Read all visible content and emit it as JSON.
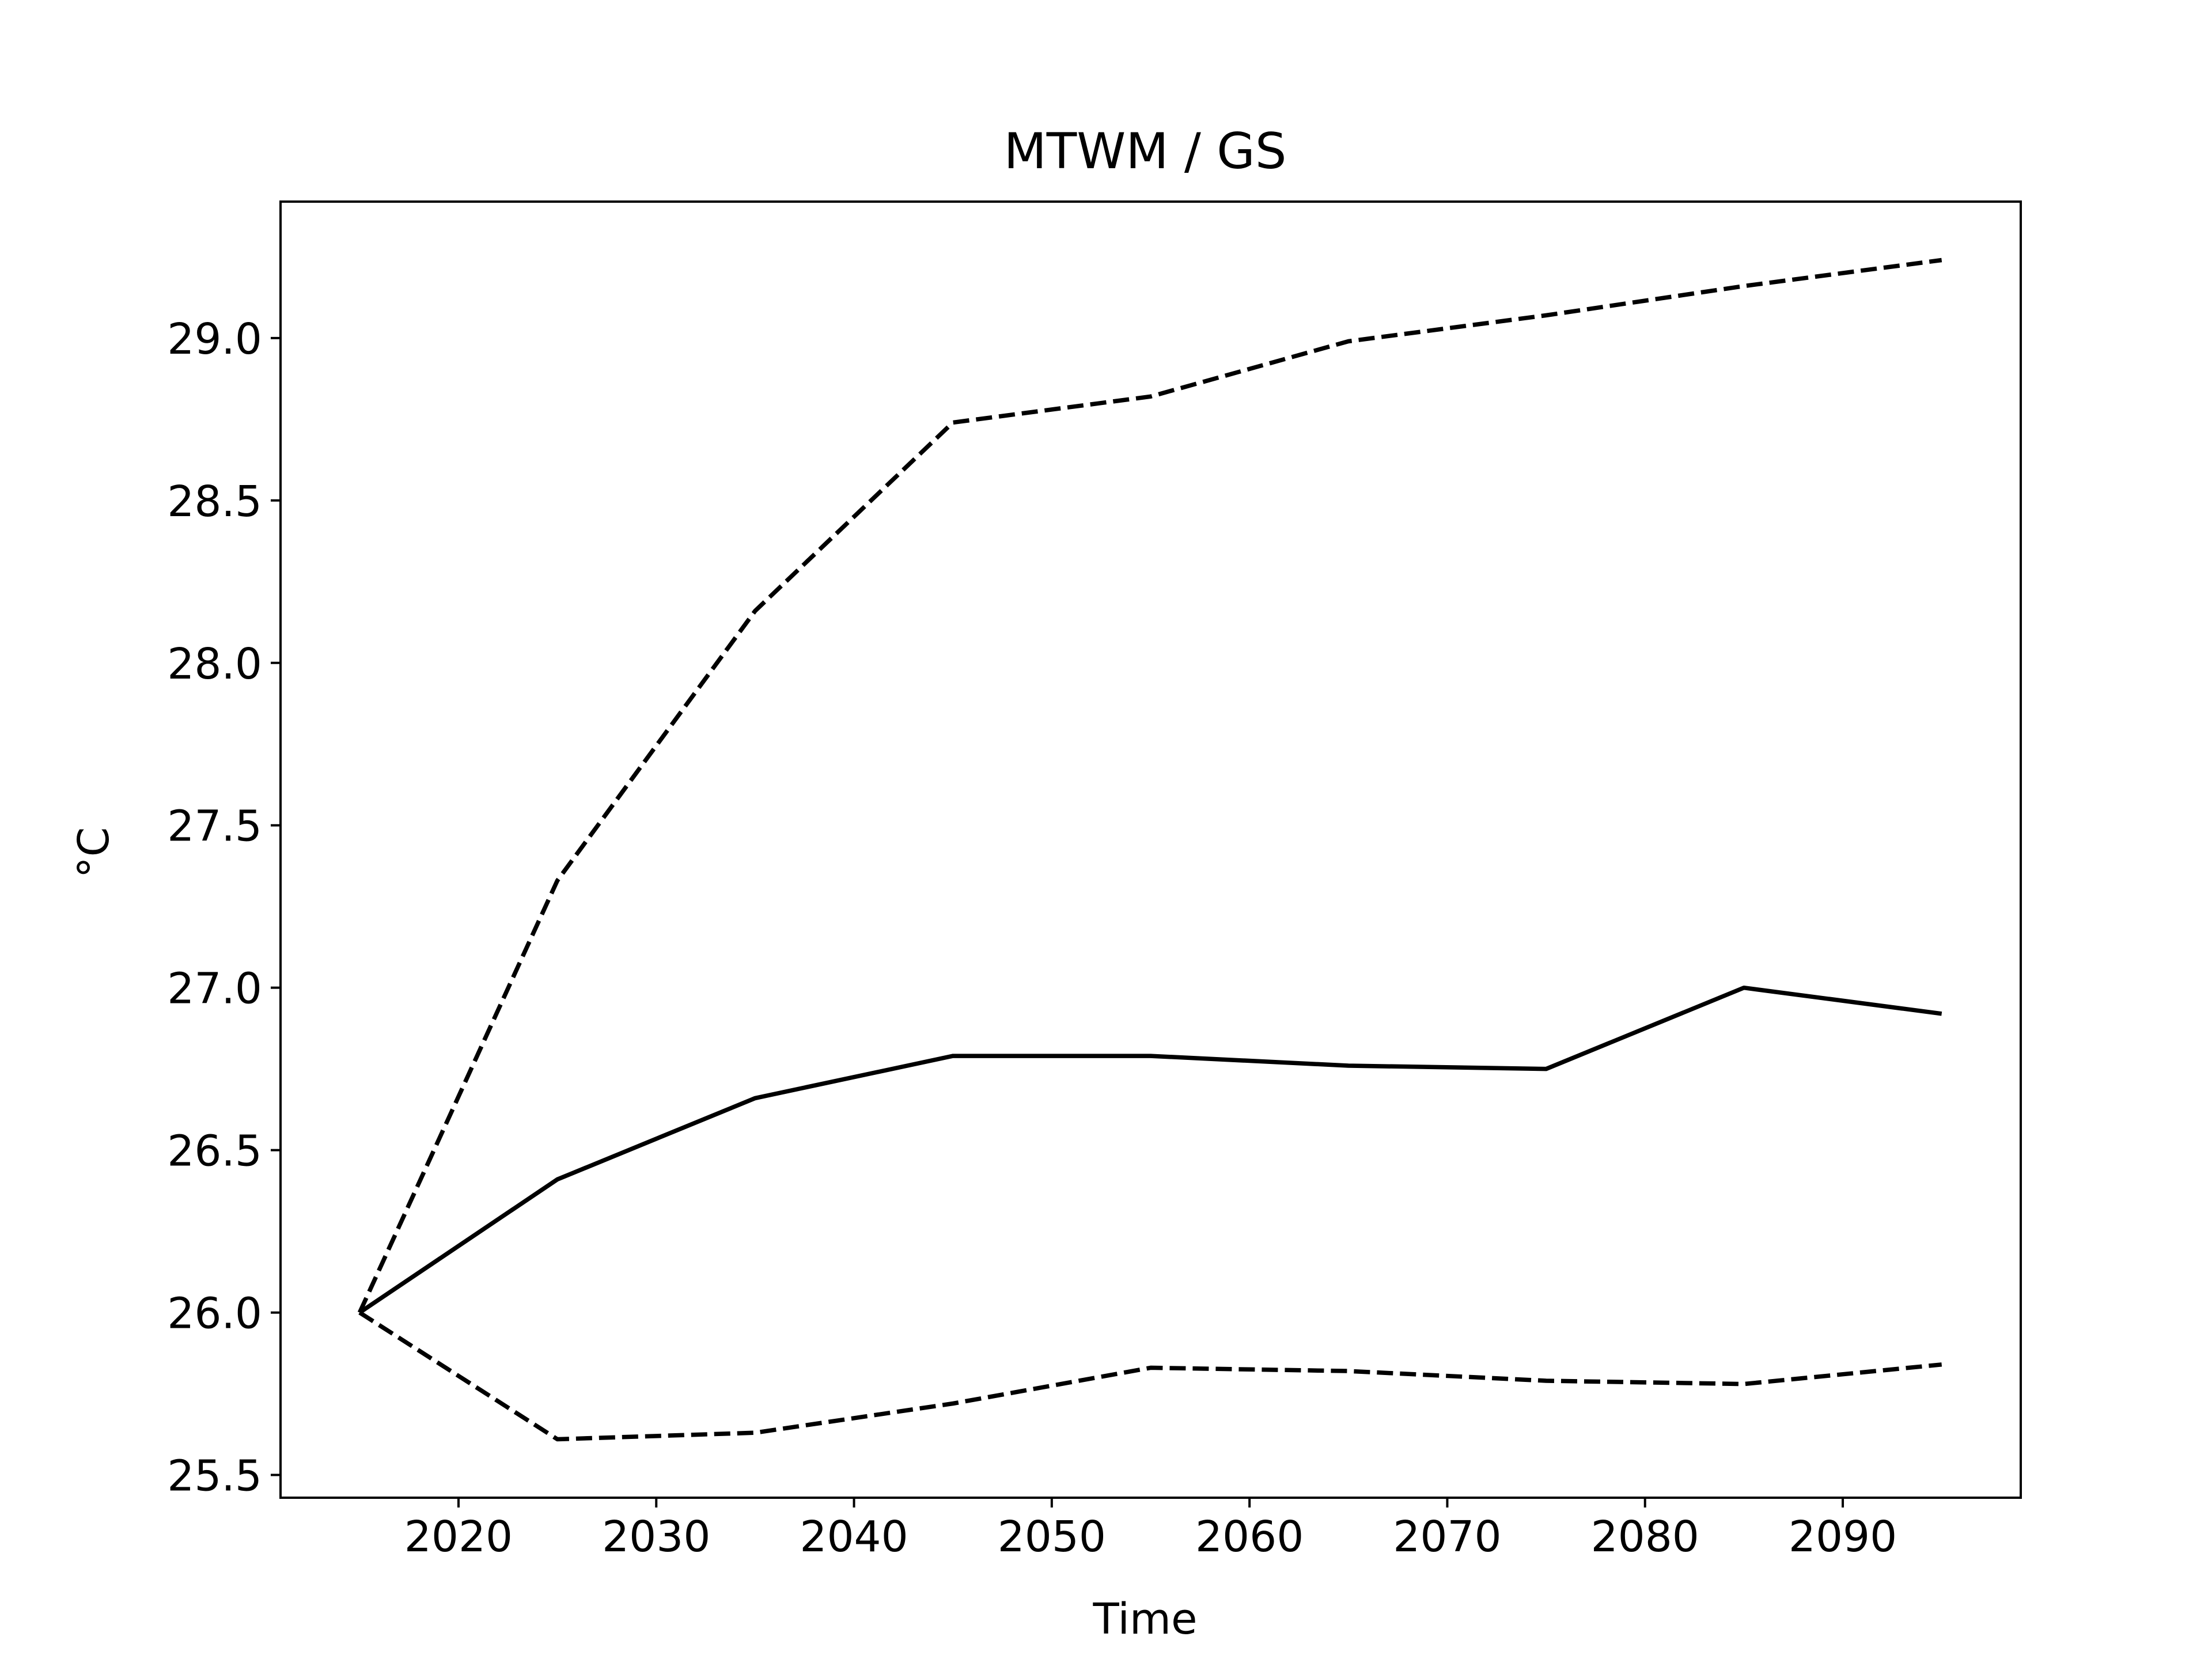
{
  "chart_data": {
    "type": "line",
    "title": "MTWM / GS",
    "xlabel": "Time",
    "ylabel": "°C",
    "xlim": [
      2011,
      2099
    ],
    "ylim": [
      25.43,
      29.42
    ],
    "xticks": [
      2020,
      2030,
      2040,
      2050,
      2060,
      2070,
      2080,
      2090
    ],
    "yticks": [
      25.5,
      26.0,
      26.5,
      27.0,
      27.5,
      28.0,
      28.5,
      29.0
    ],
    "ytick_format": 1,
    "grid": false,
    "legend": "none",
    "x": [
      2015,
      2025,
      2035,
      2045,
      2055,
      2065,
      2075,
      2085,
      2095
    ],
    "series": [
      {
        "style": "solid",
        "color": "#000000",
        "values": [
          26.0,
          26.41,
          26.66,
          26.79,
          26.79,
          26.76,
          26.75,
          27.0,
          26.92
        ]
      },
      {
        "style": "dashed",
        "color": "#000000",
        "values": [
          26.0,
          27.33,
          28.16,
          28.74,
          28.82,
          28.99,
          29.07,
          29.16,
          29.24
        ]
      },
      {
        "style": "dashed",
        "color": "#000000",
        "values": [
          26.0,
          25.61,
          25.63,
          25.72,
          25.83,
          25.82,
          25.79,
          25.78,
          25.84
        ]
      }
    ]
  }
}
